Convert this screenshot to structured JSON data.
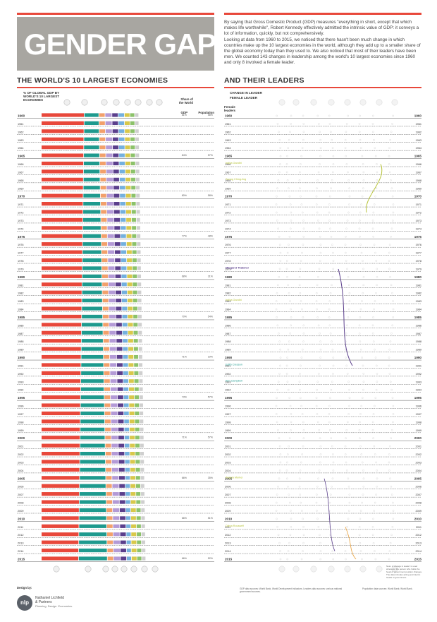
{
  "header": {
    "title": "GENDER GAP",
    "intro_p1": "By saying that Gross Domestic Product (GDP) measures \"everything in short, except that which makes life worthwhile\", Robert Kennedy effectively admitted the intrinsic value of GDP: it conveys a lot of information, quickly, but not comprehensively.",
    "intro_p2": "Looking at data from 1960 to 2015, we noticed that there hasn't been much change in which countries make up the 10 largest economies in the world, although they add up to a smaller share of the global economy today than they used to. We also noticed that most of their leaders have been men. We counted 143 changes in leadership among the world's 10 largest economies since 1960 and only 8 involved a female leader."
  },
  "left_section": {
    "title": "THE WORLD'S 10 LARGEST ECONOMIES",
    "legend": "% OF GLOBAL GDP BY WORLD'S 10 LARGEST ECONOMIES",
    "share_head": "Share of the World",
    "gdp_head": "GDP",
    "pop_head": "Population"
  },
  "right_section": {
    "title": "AND THEIR LEADERS",
    "legend_change": "CHANGE IN LEADER",
    "legend_female": "FEMALE LEADER",
    "female_head": "Female leaders",
    "note": "Note: A 'change in leader' is used whenever the person who holds the head of government position changes. The data includes acting and interim heads of government."
  },
  "footer": {
    "design_by": "Design by:",
    "logo_text": "nlp",
    "company": "Nathaniel Lichfield & Partners",
    "tagline": "Planning. Design. Economics.",
    "sources": "GDP data sources: World Bank, World Development Indicators. Leaders data sources: various national government sources.",
    "pop_sources": "Population data sources: World Bank; World Bank."
  },
  "colors": {
    "accent": "#e8483b",
    "banner": "#a8a6a1",
    "female": "#b8c43a"
  },
  "chart_data": {
    "type": "bar",
    "title": "THE WORLD'S 10 LARGEST ECONOMIES",
    "years": [
      1960,
      1961,
      1962,
      1963,
      1964,
      1965,
      1966,
      1967,
      1968,
      1969,
      1970,
      1971,
      1972,
      1973,
      1974,
      1975,
      1976,
      1977,
      1978,
      1979,
      1980,
      1981,
      1982,
      1983,
      1984,
      1985,
      1986,
      1987,
      1988,
      1989,
      1990,
      1991,
      1992,
      1993,
      1994,
      1995,
      1996,
      1997,
      1998,
      1999,
      2000,
      2001,
      2002,
      2003,
      2004,
      2005,
      2006,
      2007,
      2008,
      2009,
      2010,
      2011,
      2012,
      2013,
      2014,
      2015
    ],
    "gdp_share_labels": [
      {
        "year": 1960,
        "gdp": "81%",
        "pop": "58%"
      },
      {
        "year": 1965,
        "gdp": "84%",
        "pop": "57%"
      },
      {
        "year": 1970,
        "gdp": "80%",
        "pop": "58%"
      },
      {
        "year": 1975,
        "gdp": "77%",
        "pop": "48%"
      },
      {
        "year": 1980,
        "gdp": "68%",
        "pop": "31%"
      },
      {
        "year": 1985,
        "gdp": "70%",
        "pop": "54%"
      },
      {
        "year": 1990,
        "gdp": "71%",
        "pop": "19%"
      },
      {
        "year": 1995,
        "gdp": "73%",
        "pop": "57%"
      },
      {
        "year": 2000,
        "gdp": "71%",
        "pop": "57%"
      },
      {
        "year": 2005,
        "gdp": "66%",
        "pop": "35%"
      },
      {
        "year": 2010,
        "gdp": "66%",
        "pop": "51%"
      },
      {
        "year": 2015,
        "gdp": "66%",
        "pop": "52%"
      }
    ],
    "female_leaders": [
      {
        "year": 1966,
        "name": "Indira Gandhi"
      },
      {
        "year": 1968,
        "name": "Soong Ching-ling"
      },
      {
        "year": 1979,
        "name": "Margaret Thatcher"
      },
      {
        "year": 1983,
        "name": "Indira Gandhi"
      },
      {
        "year": 1991,
        "name": "Edith Cresson"
      },
      {
        "year": 1993,
        "name": "Kim Campbell"
      },
      {
        "year": 2005,
        "name": "Angela Merkel"
      },
      {
        "year": 2011,
        "name": "Dilma Rousseff"
      }
    ],
    "leader_changes": 143,
    "female_changes": 8
  }
}
